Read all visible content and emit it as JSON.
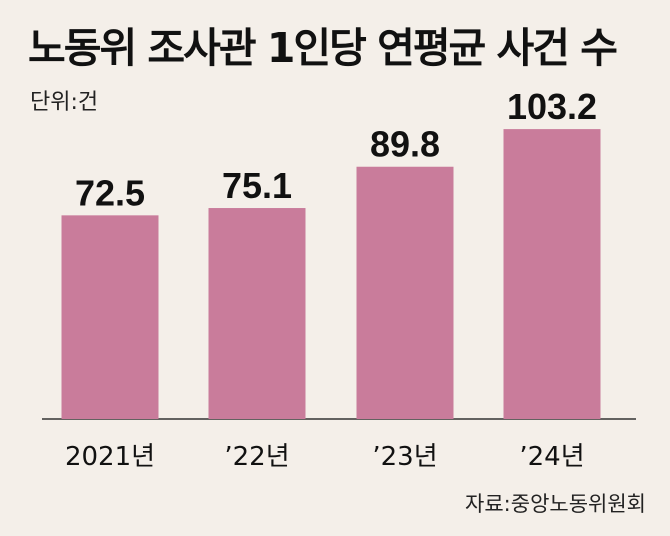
{
  "header": {
    "title": "노동위 조사관 1인당 연평균 사건 수",
    "unit": "단위:건"
  },
  "footer": {
    "source": "자료:중앙노동위원회"
  },
  "chart_data": {
    "type": "bar",
    "title": "노동위 조사관 1인당 연평균 사건 수",
    "categories": [
      "2021년",
      "’22년",
      "’23년",
      "’24년"
    ],
    "values": [
      72.5,
      75.1,
      89.8,
      103.2
    ],
    "value_labels": [
      "72.5",
      "75.1",
      "89.8",
      "103.2"
    ],
    "ylim": [
      0,
      110
    ],
    "grid": false,
    "bar_color": "#c97c9b",
    "background_color": "#f4efe9"
  }
}
